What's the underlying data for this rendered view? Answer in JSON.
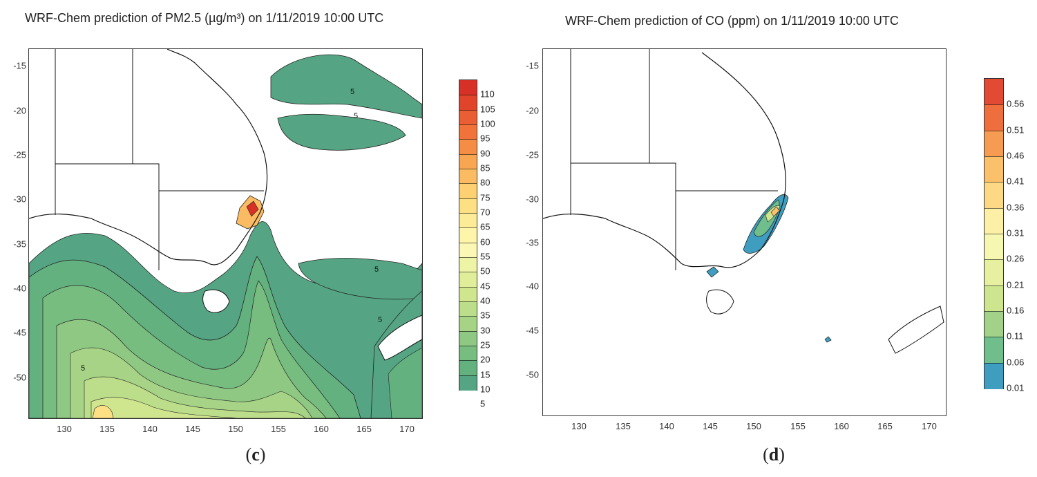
{
  "panels": [
    {
      "id": "c",
      "title": "WRF-Chem prediction of PM2.5 (µg/m³) on 1/11/2019 10:00 UTC",
      "caption": "(c)",
      "caption_letter": "c",
      "x_ticks": [
        "130",
        "135",
        "140",
        "145",
        "150",
        "155",
        "160",
        "165",
        "170"
      ],
      "y_ticks": [
        "-15",
        "-20",
        "-25",
        "-30",
        "-35",
        "-40",
        "-45",
        "-50"
      ],
      "colorbar_labels": [
        "110",
        "105",
        "100",
        "95",
        "90",
        "85",
        "80",
        "75",
        "70",
        "65",
        "60",
        "55",
        "50",
        "45",
        "40",
        "35",
        "30",
        "25",
        "20",
        "15",
        "10",
        "5"
      ],
      "colorbar_colors": [
        "#d73027",
        "#e0452b",
        "#ea5e33",
        "#f1733a",
        "#f58d44",
        "#f8a652",
        "#fbbb62",
        "#fdd072",
        "#fde084",
        "#fdec97",
        "#fef5aa",
        "#fbf8b5",
        "#eef4a6",
        "#e1ee99",
        "#cfe68f",
        "#bcdd89",
        "#a6d385",
        "#8fc882",
        "#78bd80",
        "#63b17f",
        "#55a584"
      ],
      "contour_label": "5"
    },
    {
      "id": "d",
      "title": "WRF-Chem prediction of CO (ppm) on 1/11/2019 10:00 UTC",
      "caption": "(d)",
      "caption_letter": "d",
      "x_ticks": [
        "130",
        "135",
        "140",
        "145",
        "150",
        "155",
        "160",
        "165",
        "170"
      ],
      "y_ticks": [
        "-15",
        "-20",
        "-25",
        "-30",
        "-35",
        "-40",
        "-45",
        "-50"
      ],
      "colorbar_labels": [
        "0.56",
        "0.51",
        "0.46",
        "0.41",
        "0.36",
        "0.31",
        "0.26",
        "0.21",
        "0.16",
        "0.11",
        "0.06",
        "0.01"
      ],
      "colorbar_colors": [
        "#e34a33",
        "#ef6e3e",
        "#f69b52",
        "#fbc06a",
        "#fdd985",
        "#fdf0a6",
        "#f6f7b0",
        "#e7f0a0",
        "#cde58f",
        "#a2d28a",
        "#6fbe8c",
        "#3f9ec0"
      ]
    }
  ]
}
